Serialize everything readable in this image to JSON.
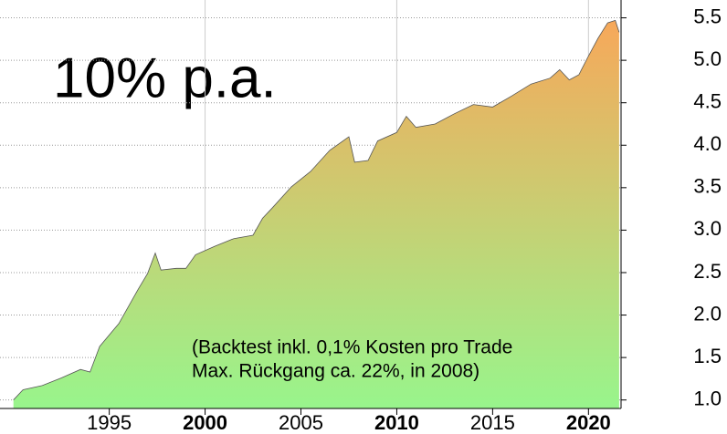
{
  "chart_data": {
    "type": "area",
    "title": "10% p.a.",
    "annotation": [
      "(Backtest inkl. 0,1% Kosten pro Trade",
      "Max. Rückgang ca. 22%, in 2008)"
    ],
    "x": [
      1990.0,
      1990.5,
      1991.5,
      1992.5,
      1993.5,
      1994.0,
      1994.5,
      1995.5,
      1996.5,
      1997.0,
      1997.4,
      1997.7,
      1998.5,
      1999.0,
      1999.5,
      2000.5,
      2001.5,
      2002.5,
      2003.0,
      2003.5,
      2004.5,
      2005.5,
      2006.5,
      2007.5,
      2007.8,
      2008.5,
      2009.0,
      2010.0,
      2010.5,
      2011.0,
      2012.0,
      2013.0,
      2014.0,
      2015.0,
      2016.0,
      2017.0,
      2018.0,
      2018.5,
      2019.0,
      2019.5,
      2020.0,
      2020.5,
      2021.0,
      2021.4,
      2021.6
    ],
    "values": [
      1.0,
      1.12,
      1.17,
      1.26,
      1.36,
      1.33,
      1.63,
      1.9,
      2.3,
      2.49,
      2.73,
      2.53,
      2.55,
      2.55,
      2.71,
      2.81,
      2.9,
      2.94,
      3.14,
      3.26,
      3.51,
      3.69,
      3.94,
      4.1,
      3.8,
      3.82,
      4.05,
      4.15,
      4.34,
      4.21,
      4.25,
      4.37,
      4.48,
      4.45,
      4.58,
      4.72,
      4.79,
      4.89,
      4.77,
      4.83,
      5.05,
      5.26,
      5.44,
      5.47,
      5.33
    ],
    "gradient": [
      "#f7a85a",
      "#98f58c"
    ],
    "xlim": [
      1989.3,
      2021.7
    ],
    "xticks": [
      1995,
      2000,
      2005,
      2010,
      2015,
      2020
    ],
    "ylim": [
      0.9,
      5.71
    ],
    "yticks": [
      {
        "value": 1,
        "label": "1.0"
      },
      1.5,
      {
        "value": 2,
        "label": "2.0"
      },
      2.5,
      {
        "value": 3,
        "label": "3.0"
      },
      3.5,
      {
        "value": 4,
        "label": "4.0"
      },
      4.5,
      {
        "value": 5,
        "label": "5.0"
      },
      5.5
    ],
    "grid": true
  }
}
